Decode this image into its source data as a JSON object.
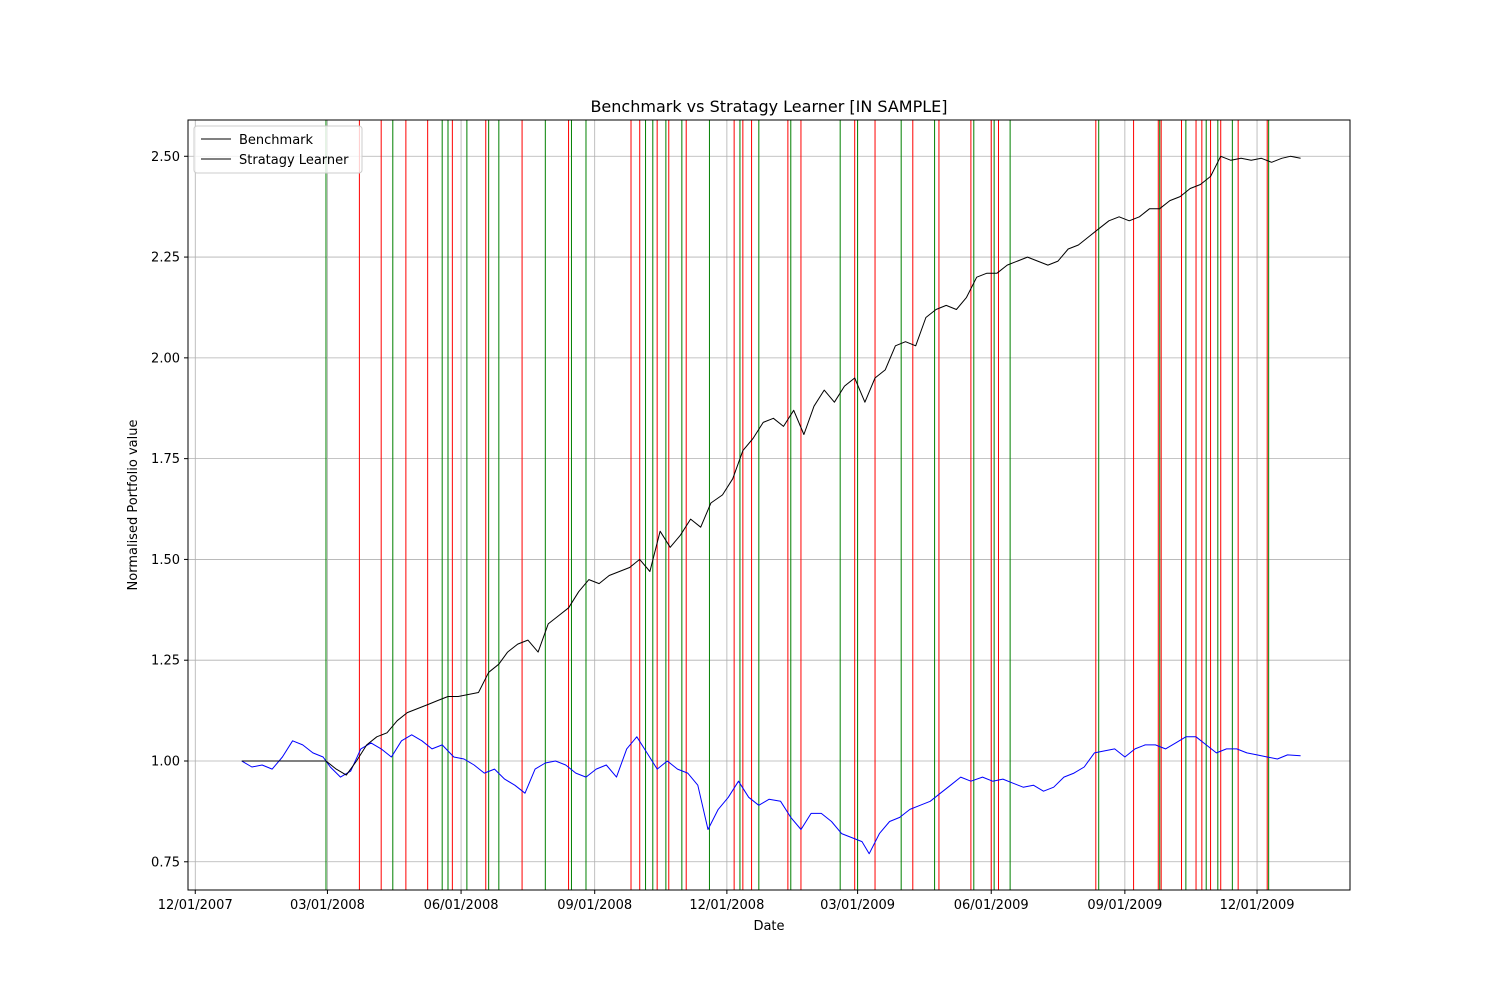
{
  "chart_data": {
    "type": "line",
    "title": "Benchmark vs Stratagy Learner [IN SAMPLE]",
    "xlabel": "Date",
    "ylabel": "Normalised Portfolio value",
    "x_ticks": [
      "12/01/2007",
      "03/01/2008",
      "06/01/2008",
      "09/01/2008",
      "12/01/2008",
      "03/01/2009",
      "06/01/2009",
      "09/01/2009",
      "12/01/2009"
    ],
    "xlim": [
      "2007-11-26",
      "2010-02-03"
    ],
    "y_ticks": [
      "0.75",
      "1.00",
      "1.25",
      "1.50",
      "1.75",
      "2.00",
      "2.25",
      "2.50"
    ],
    "ylim": [
      0.68,
      2.59
    ],
    "grid": true,
    "legend_position": "upper left",
    "x_range": [
      "2008-01-02",
      "2009-12-31"
    ],
    "series": [
      {
        "name": "Benchmark",
        "color": "#0000ff",
        "legend_line_color": "#000000",
        "points": [
          [
            "2008-01-02",
            1.0
          ],
          [
            "2008-01-09",
            0.985
          ],
          [
            "2008-01-16",
            0.99
          ],
          [
            "2008-01-23",
            0.98
          ],
          [
            "2008-01-30",
            1.01
          ],
          [
            "2008-02-06",
            1.05
          ],
          [
            "2008-02-13",
            1.04
          ],
          [
            "2008-02-20",
            1.02
          ],
          [
            "2008-02-27",
            1.01
          ],
          [
            "2008-03-03",
            0.985
          ],
          [
            "2008-03-10",
            0.96
          ],
          [
            "2008-03-17",
            0.975
          ],
          [
            "2008-03-24",
            1.03
          ],
          [
            "2008-03-31",
            1.045
          ],
          [
            "2008-04-07",
            1.03
          ],
          [
            "2008-04-14",
            1.01
          ],
          [
            "2008-04-21",
            1.05
          ],
          [
            "2008-04-28",
            1.065
          ],
          [
            "2008-05-05",
            1.05
          ],
          [
            "2008-05-12",
            1.03
          ],
          [
            "2008-05-19",
            1.04
          ],
          [
            "2008-05-27",
            1.01
          ],
          [
            "2008-06-03",
            1.005
          ],
          [
            "2008-06-10",
            0.99
          ],
          [
            "2008-06-17",
            0.97
          ],
          [
            "2008-06-24",
            0.98
          ],
          [
            "2008-07-01",
            0.955
          ],
          [
            "2008-07-08",
            0.94
          ],
          [
            "2008-07-15",
            0.92
          ],
          [
            "2008-07-22",
            0.98
          ],
          [
            "2008-07-29",
            0.995
          ],
          [
            "2008-08-05",
            1.0
          ],
          [
            "2008-08-12",
            0.99
          ],
          [
            "2008-08-19",
            0.97
          ],
          [
            "2008-08-26",
            0.96
          ],
          [
            "2008-09-02",
            0.98
          ],
          [
            "2008-09-09",
            0.99
          ],
          [
            "2008-09-16",
            0.96
          ],
          [
            "2008-09-23",
            1.03
          ],
          [
            "2008-09-30",
            1.06
          ],
          [
            "2008-10-07",
            1.02
          ],
          [
            "2008-10-14",
            0.98
          ],
          [
            "2008-10-21",
            1.0
          ],
          [
            "2008-10-28",
            0.98
          ],
          [
            "2008-11-04",
            0.97
          ],
          [
            "2008-11-11",
            0.94
          ],
          [
            "2008-11-18",
            0.83
          ],
          [
            "2008-11-25",
            0.88
          ],
          [
            "2008-12-02",
            0.91
          ],
          [
            "2008-12-09",
            0.95
          ],
          [
            "2008-12-16",
            0.91
          ],
          [
            "2008-12-23",
            0.89
          ],
          [
            "2008-12-30",
            0.905
          ],
          [
            "2009-01-07",
            0.9
          ],
          [
            "2009-01-14",
            0.86
          ],
          [
            "2009-01-21",
            0.83
          ],
          [
            "2009-01-28",
            0.87
          ],
          [
            "2009-02-04",
            0.87
          ],
          [
            "2009-02-11",
            0.85
          ],
          [
            "2009-02-18",
            0.82
          ],
          [
            "2009-02-25",
            0.81
          ],
          [
            "2009-03-04",
            0.8
          ],
          [
            "2009-03-09",
            0.77
          ],
          [
            "2009-03-16",
            0.82
          ],
          [
            "2009-03-23",
            0.85
          ],
          [
            "2009-03-30",
            0.86
          ],
          [
            "2009-04-06",
            0.88
          ],
          [
            "2009-04-13",
            0.89
          ],
          [
            "2009-04-20",
            0.9
          ],
          [
            "2009-04-27",
            0.92
          ],
          [
            "2009-05-04",
            0.94
          ],
          [
            "2009-05-11",
            0.96
          ],
          [
            "2009-05-18",
            0.95
          ],
          [
            "2009-05-26",
            0.96
          ],
          [
            "2009-06-02",
            0.95
          ],
          [
            "2009-06-09",
            0.955
          ],
          [
            "2009-06-16",
            0.945
          ],
          [
            "2009-06-23",
            0.935
          ],
          [
            "2009-06-30",
            0.94
          ],
          [
            "2009-07-07",
            0.925
          ],
          [
            "2009-07-14",
            0.935
          ],
          [
            "2009-07-21",
            0.96
          ],
          [
            "2009-07-28",
            0.97
          ],
          [
            "2009-08-04",
            0.985
          ],
          [
            "2009-08-11",
            1.02
          ],
          [
            "2009-08-18",
            1.025
          ],
          [
            "2009-08-25",
            1.03
          ],
          [
            "2009-09-01",
            1.01
          ],
          [
            "2009-09-08",
            1.03
          ],
          [
            "2009-09-15",
            1.04
          ],
          [
            "2009-09-22",
            1.04
          ],
          [
            "2009-09-29",
            1.03
          ],
          [
            "2009-10-06",
            1.045
          ],
          [
            "2009-10-13",
            1.06
          ],
          [
            "2009-10-20",
            1.06
          ],
          [
            "2009-10-27",
            1.04
          ],
          [
            "2009-11-03",
            1.02
          ],
          [
            "2009-11-10",
            1.03
          ],
          [
            "2009-11-17",
            1.03
          ],
          [
            "2009-11-24",
            1.02
          ],
          [
            "2009-12-01",
            1.015
          ],
          [
            "2009-12-08",
            1.01
          ],
          [
            "2009-12-15",
            1.005
          ],
          [
            "2009-12-22",
            1.015
          ],
          [
            "2009-12-31",
            1.013
          ]
        ]
      },
      {
        "name": "Stratagy Learner",
        "color": "#000000",
        "points": [
          [
            "2008-01-02",
            1.0
          ],
          [
            "2008-02-29",
            1.0
          ],
          [
            "2008-03-07",
            0.98
          ],
          [
            "2008-03-14",
            0.965
          ],
          [
            "2008-03-21",
            1.0
          ],
          [
            "2008-03-28",
            1.04
          ],
          [
            "2008-04-04",
            1.06
          ],
          [
            "2008-04-11",
            1.07
          ],
          [
            "2008-04-18",
            1.1
          ],
          [
            "2008-04-25",
            1.12
          ],
          [
            "2008-05-02",
            1.13
          ],
          [
            "2008-05-09",
            1.14
          ],
          [
            "2008-05-16",
            1.15
          ],
          [
            "2008-05-23",
            1.16
          ],
          [
            "2008-05-30",
            1.16
          ],
          [
            "2008-06-06",
            1.165
          ],
          [
            "2008-06-13",
            1.17
          ],
          [
            "2008-06-20",
            1.22
          ],
          [
            "2008-06-27",
            1.24
          ],
          [
            "2008-07-03",
            1.27
          ],
          [
            "2008-07-10",
            1.29
          ],
          [
            "2008-07-17",
            1.3
          ],
          [
            "2008-07-24",
            1.27
          ],
          [
            "2008-07-31",
            1.34
          ],
          [
            "2008-08-07",
            1.36
          ],
          [
            "2008-08-14",
            1.38
          ],
          [
            "2008-08-21",
            1.42
          ],
          [
            "2008-08-28",
            1.45
          ],
          [
            "2008-09-04",
            1.44
          ],
          [
            "2008-09-11",
            1.46
          ],
          [
            "2008-09-18",
            1.47
          ],
          [
            "2008-09-25",
            1.48
          ],
          [
            "2008-10-02",
            1.5
          ],
          [
            "2008-10-09",
            1.47
          ],
          [
            "2008-10-16",
            1.57
          ],
          [
            "2008-10-23",
            1.53
          ],
          [
            "2008-10-30",
            1.56
          ],
          [
            "2008-11-06",
            1.6
          ],
          [
            "2008-11-13",
            1.58
          ],
          [
            "2008-11-20",
            1.64
          ],
          [
            "2008-11-28",
            1.66
          ],
          [
            "2008-12-05",
            1.7
          ],
          [
            "2008-12-12",
            1.77
          ],
          [
            "2008-12-19",
            1.8
          ],
          [
            "2008-12-26",
            1.84
          ],
          [
            "2009-01-02",
            1.85
          ],
          [
            "2009-01-09",
            1.83
          ],
          [
            "2009-01-16",
            1.87
          ],
          [
            "2009-01-23",
            1.81
          ],
          [
            "2009-01-30",
            1.88
          ],
          [
            "2009-02-06",
            1.92
          ],
          [
            "2009-02-13",
            1.89
          ],
          [
            "2009-02-20",
            1.93
          ],
          [
            "2009-02-27",
            1.95
          ],
          [
            "2009-03-06",
            1.89
          ],
          [
            "2009-03-13",
            1.95
          ],
          [
            "2009-03-20",
            1.97
          ],
          [
            "2009-03-27",
            2.03
          ],
          [
            "2009-04-03",
            2.04
          ],
          [
            "2009-04-10",
            2.03
          ],
          [
            "2009-04-17",
            2.1
          ],
          [
            "2009-04-24",
            2.12
          ],
          [
            "2009-05-01",
            2.13
          ],
          [
            "2009-05-08",
            2.12
          ],
          [
            "2009-05-15",
            2.15
          ],
          [
            "2009-05-22",
            2.2
          ],
          [
            "2009-05-29",
            2.21
          ],
          [
            "2009-06-05",
            2.21
          ],
          [
            "2009-06-12",
            2.23
          ],
          [
            "2009-06-19",
            2.24
          ],
          [
            "2009-06-26",
            2.25
          ],
          [
            "2009-07-03",
            2.24
          ],
          [
            "2009-07-10",
            2.23
          ],
          [
            "2009-07-17",
            2.24
          ],
          [
            "2009-07-24",
            2.27
          ],
          [
            "2009-07-31",
            2.28
          ],
          [
            "2009-08-07",
            2.3
          ],
          [
            "2009-08-14",
            2.32
          ],
          [
            "2009-08-21",
            2.34
          ],
          [
            "2009-08-28",
            2.35
          ],
          [
            "2009-09-04",
            2.34
          ],
          [
            "2009-09-11",
            2.35
          ],
          [
            "2009-09-18",
            2.37
          ],
          [
            "2009-09-25",
            2.37
          ],
          [
            "2009-10-02",
            2.39
          ],
          [
            "2009-10-09",
            2.4
          ],
          [
            "2009-10-16",
            2.42
          ],
          [
            "2009-10-23",
            2.43
          ],
          [
            "2009-10-30",
            2.45
          ],
          [
            "2009-11-06",
            2.5
          ],
          [
            "2009-11-13",
            2.49
          ],
          [
            "2009-11-20",
            2.495
          ],
          [
            "2009-11-27",
            2.49
          ],
          [
            "2009-12-04",
            2.495
          ],
          [
            "2009-12-11",
            2.485
          ],
          [
            "2009-12-18",
            2.495
          ],
          [
            "2009-12-24",
            2.5
          ],
          [
            "2009-12-31",
            2.495
          ]
        ]
      }
    ],
    "vlines": {
      "entry_color": "#008000",
      "exit_color": "#ff0000",
      "entries": [
        "2008-02-29",
        "2008-04-15",
        "2008-05-19",
        "2008-05-23",
        "2008-06-05",
        "2008-06-20",
        "2008-06-27",
        "2008-07-29",
        "2008-08-16",
        "2008-08-26",
        "2008-10-06",
        "2008-10-11",
        "2008-10-20",
        "2008-10-31",
        "2008-11-19",
        "2008-12-10",
        "2008-12-23",
        "2009-01-14",
        "2009-02-17",
        "2009-03-01",
        "2009-03-31",
        "2009-04-23",
        "2009-05-20",
        "2009-06-03",
        "2009-06-14",
        "2009-08-14",
        "2009-09-25",
        "2009-10-13",
        "2009-10-27",
        "2009-11-04",
        "2009-11-14",
        "2009-12-09"
      ],
      "exits": [
        "2008-03-23",
        "2008-04-07",
        "2008-04-24",
        "2008-05-09",
        "2008-05-26",
        "2008-06-18",
        "2008-07-13",
        "2008-08-14",
        "2008-09-26",
        "2008-10-02",
        "2008-10-14",
        "2008-10-22",
        "2008-11-03",
        "2008-12-06",
        "2008-12-12",
        "2008-12-18",
        "2009-01-12",
        "2009-01-21",
        "2009-02-27",
        "2009-03-13",
        "2009-04-08",
        "2009-04-26",
        "2009-05-18",
        "2009-06-01",
        "2009-06-06",
        "2009-08-12",
        "2009-09-07",
        "2009-09-24",
        "2009-09-26",
        "2009-10-10",
        "2009-10-20",
        "2009-10-24",
        "2009-10-30",
        "2009-11-06",
        "2009-11-18",
        "2009-12-08"
      ]
    }
  }
}
